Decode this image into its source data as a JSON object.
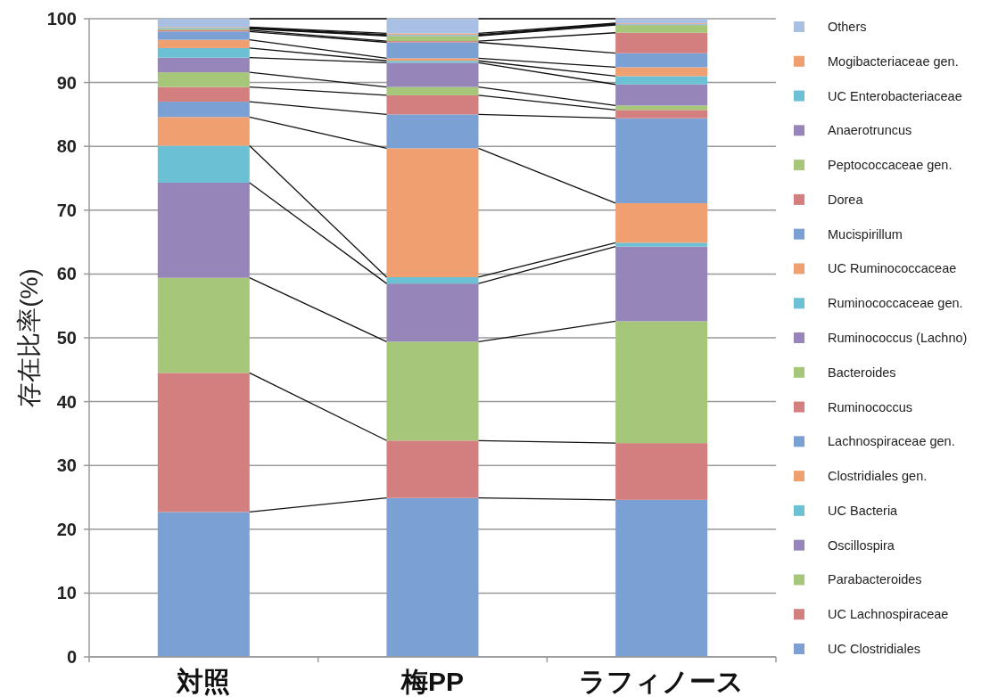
{
  "chart_data": {
    "type": "bar",
    "stacked": true,
    "ylabel": "存在比率(%)",
    "categories": [
      "対照",
      "梅PP",
      "ラフィノース"
    ],
    "ylim": [
      0,
      100
    ],
    "yticks": [
      0,
      10,
      20,
      30,
      40,
      50,
      60,
      70,
      80,
      90,
      100
    ],
    "grid": "y",
    "legend": "right",
    "series": [
      {
        "name": "UC Clostridiales",
        "color": "#7ba0d4",
        "values": [
          22.7,
          24.9,
          24.6
        ]
      },
      {
        "name": "UC Lachnospiraceae",
        "color": "#d47f7f",
        "values": [
          21.8,
          9.0,
          8.9
        ]
      },
      {
        "name": "Parabacteroides",
        "color": "#a6c77a",
        "values": [
          14.9,
          15.5,
          19.1
        ]
      },
      {
        "name": "Oscillospira",
        "color": "#9585b8",
        "values": [
          14.9,
          9.1,
          11.7
        ]
      },
      {
        "name": "UC Bacteria",
        "color": "#6cc0d4",
        "values": [
          5.8,
          1.0,
          0.6
        ]
      },
      {
        "name": "Clostridiales gen.",
        "color": "#f0a070",
        "values": [
          4.5,
          20.2,
          6.2
        ]
      },
      {
        "name": "Lachnospiraceae gen.",
        "color": "#7ba0d4",
        "values": [
          2.4,
          5.3,
          13.3
        ]
      },
      {
        "name": "Ruminococcus",
        "color": "#d47f7f",
        "values": [
          2.3,
          3.0,
          1.3
        ]
      },
      {
        "name": "Bacteroides",
        "color": "#a6c77a",
        "values": [
          2.3,
          1.3,
          0.7
        ]
      },
      {
        "name": "Ruminococcus (Lachno)",
        "color": "#9585b8",
        "values": [
          2.3,
          3.8,
          3.3
        ]
      },
      {
        "name": "Ruminococcaceae gen.",
        "color": "#6cc0d4",
        "values": [
          1.5,
          0.3,
          1.3
        ]
      },
      {
        "name": "UC Ruminococcaceae",
        "color": "#f0a070",
        "values": [
          1.3,
          0.4,
          1.4
        ]
      },
      {
        "name": "Mucispirillum",
        "color": "#7ba0d4",
        "values": [
          1.3,
          2.5,
          2.2
        ]
      },
      {
        "name": "Dorea",
        "color": "#d47f7f",
        "values": [
          0.2,
          0.2,
          3.2
        ]
      },
      {
        "name": "Peptococcaceae gen.",
        "color": "#a6c77a",
        "values": [
          0.2,
          0.8,
          1.2
        ]
      },
      {
        "name": "Anaerotruncus",
        "color": "#9585b8",
        "values": [
          0.1,
          0.1,
          0.1
        ]
      },
      {
        "name": "UC Enterobacteriaceae",
        "color": "#6cc0d4",
        "values": [
          0.1,
          0.1,
          0.1
        ]
      },
      {
        "name": "Mogibacteriaceae gen.",
        "color": "#f0a070",
        "values": [
          0.1,
          0.2,
          0.1
        ]
      },
      {
        "name": "Others",
        "color": "#a9c0e4",
        "values": [
          1.3,
          2.3,
          0.7
        ]
      }
    ]
  }
}
